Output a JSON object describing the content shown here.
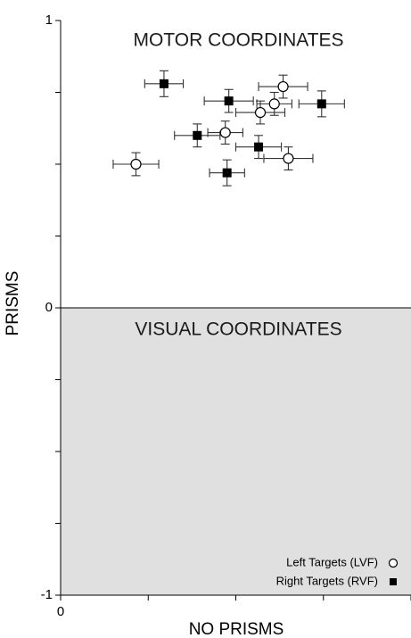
{
  "chart_data": {
    "type": "scatter",
    "xlabel": "NO PRISMS",
    "ylabel": "PRISMS",
    "xlim": [
      0,
      1
    ],
    "ylim": [
      -1,
      1
    ],
    "xticks": [
      0,
      0.25,
      0.5,
      0.75,
      1
    ],
    "yticks": [
      -1,
      -0.75,
      -0.5,
      -0.25,
      0,
      0.25,
      0.5,
      0.75,
      1
    ],
    "x_tick_labels": [
      {
        "value": 0,
        "text": "0"
      }
    ],
    "y_tick_labels": [
      {
        "value": 1,
        "text": "1"
      },
      {
        "value": 0,
        "text": "0"
      },
      {
        "value": -1,
        "text": "-1"
      }
    ],
    "regions": [
      {
        "label": "MOTOR COORDINATES",
        "y_range": [
          0,
          1
        ],
        "fill": "#ffffff"
      },
      {
        "label": "VISUAL COORDINATES",
        "y_range": [
          -1,
          0
        ],
        "fill": "#e0e0e0"
      }
    ],
    "series": [
      {
        "name": "Left Targets (LVF)",
        "marker": "open-circle",
        "color": "#000000",
        "points": [
          {
            "x": 0.215,
            "y": 0.5,
            "xerr": 0.065,
            "yerr": 0.04
          },
          {
            "x": 0.47,
            "y": 0.61,
            "xerr": 0.05,
            "yerr": 0.04
          },
          {
            "x": 0.57,
            "y": 0.68,
            "xerr": 0.07,
            "yerr": 0.04
          },
          {
            "x": 0.61,
            "y": 0.71,
            "xerr": 0.05,
            "yerr": 0.04
          },
          {
            "x": 0.635,
            "y": 0.77,
            "xerr": 0.07,
            "yerr": 0.04
          },
          {
            "x": 0.65,
            "y": 0.52,
            "xerr": 0.07,
            "yerr": 0.04
          }
        ]
      },
      {
        "name": "Right Targets (RVF)",
        "marker": "filled-square",
        "color": "#000000",
        "points": [
          {
            "x": 0.295,
            "y": 0.78,
            "xerr": 0.055,
            "yerr": 0.045
          },
          {
            "x": 0.39,
            "y": 0.6,
            "xerr": 0.065,
            "yerr": 0.04
          },
          {
            "x": 0.48,
            "y": 0.72,
            "xerr": 0.07,
            "yerr": 0.04
          },
          {
            "x": 0.475,
            "y": 0.47,
            "xerr": 0.05,
            "yerr": 0.045
          },
          {
            "x": 0.565,
            "y": 0.56,
            "xerr": 0.065,
            "yerr": 0.04
          },
          {
            "x": 0.745,
            "y": 0.71,
            "xerr": 0.065,
            "yerr": 0.045
          }
        ]
      }
    ],
    "legend": {
      "position": "bottom-right"
    },
    "grid": false
  }
}
